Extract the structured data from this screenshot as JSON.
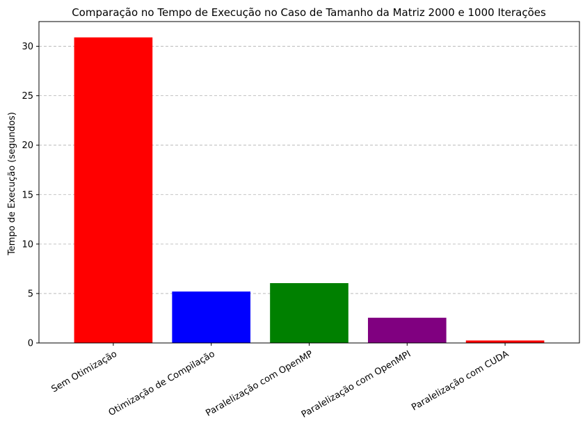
{
  "chart_data": {
    "type": "bar",
    "title": "Comparação no Tempo de Execução no Caso de Tamanho da Matriz 2000 e 1000 Iterações",
    "xlabel": "",
    "ylabel": "Tempo de Execução (segundos)",
    "categories": [
      "Sem Otimização",
      "Otimização de Compilação",
      "Paralelização com OpenMP",
      "Paralelização com OpenMPI",
      "Paralelização com CUDA"
    ],
    "values": [
      30.9,
      5.2,
      6.05,
      2.55,
      0.25
    ],
    "colors": [
      "#ff0000",
      "#0000ff",
      "#008000",
      "#800080",
      "#ff0000"
    ],
    "ylim": [
      0,
      32.5
    ],
    "yticks": [
      0,
      5,
      10,
      15,
      20,
      25,
      30
    ],
    "ygrid": true,
    "xgrid": false
  }
}
